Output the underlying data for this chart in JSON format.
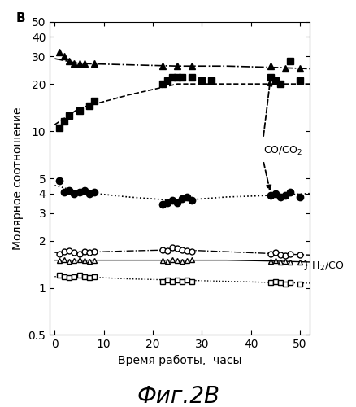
{
  "title_label": "B",
  "xlabel": "Время работы,  часы",
  "ylabel": "Молярное соотношение",
  "fig_label": "Фиг.2B",
  "ylim_log": [
    0.5,
    50
  ],
  "xlim": [
    -1,
    52
  ],
  "yticks": [
    0.5,
    1,
    2,
    3,
    4,
    5,
    10,
    20,
    30,
    40,
    50
  ],
  "xticks": [
    0,
    10,
    20,
    30,
    40,
    50
  ],
  "series_triangle_filled": {
    "x": [
      1,
      2,
      3,
      4,
      5,
      6,
      8,
      22,
      25,
      28,
      44,
      47,
      50
    ],
    "y": [
      32,
      30,
      28,
      27,
      27,
      27,
      27,
      26,
      26,
      26,
      26,
      25,
      25
    ],
    "fit_x": [
      0,
      5,
      15,
      25,
      35,
      45,
      52
    ],
    "fit_y": [
      29,
      27,
      26.5,
      26,
      26,
      25.5,
      25
    ],
    "marker": "^",
    "linestyle": "-.",
    "linewidth": 1.2,
    "markersize": 6
  },
  "series_square_filled": {
    "x": [
      1,
      2,
      3,
      5,
      7,
      8,
      22,
      23,
      24,
      25,
      26,
      28,
      30,
      32,
      44,
      45,
      46,
      48,
      50
    ],
    "y": [
      10.5,
      11.5,
      12.5,
      13.5,
      14.5,
      15.5,
      20,
      21,
      22,
      22,
      22,
      22,
      21,
      21,
      22,
      21,
      20,
      28,
      21
    ],
    "fit_x": [
      0,
      5,
      15,
      25,
      35,
      45,
      52
    ],
    "fit_y": [
      11,
      14,
      17,
      20,
      20,
      20,
      20
    ],
    "marker": "s",
    "linestyle": "--",
    "linewidth": 1.2,
    "markersize": 6
  },
  "series_circle_filled": {
    "x": [
      1,
      2,
      3,
      4,
      5,
      6,
      7,
      8,
      22,
      23,
      24,
      25,
      26,
      27,
      28,
      44,
      45,
      46,
      47,
      48,
      50
    ],
    "y": [
      4.8,
      4.1,
      4.2,
      4.0,
      4.1,
      4.2,
      4.0,
      4.1,
      3.4,
      3.5,
      3.6,
      3.5,
      3.7,
      3.8,
      3.6,
      3.9,
      4.0,
      3.8,
      3.9,
      4.1,
      3.8
    ],
    "fit_x": [
      0,
      5,
      15,
      25,
      35,
      45,
      52
    ],
    "fit_y": [
      4.5,
      4.1,
      3.8,
      3.6,
      3.8,
      3.9,
      4.0
    ],
    "marker": "o",
    "linestyle": "dotted",
    "linewidth": 1.2,
    "markersize": 6
  },
  "series_circle_open": {
    "x": [
      1,
      2,
      3,
      4,
      5,
      6,
      7,
      8,
      22,
      23,
      24,
      25,
      26,
      27,
      28,
      44,
      45,
      46,
      47,
      48,
      50
    ],
    "y": [
      1.65,
      1.7,
      1.72,
      1.68,
      1.65,
      1.7,
      1.68,
      1.7,
      1.75,
      1.72,
      1.8,
      1.78,
      1.75,
      1.72,
      1.7,
      1.65,
      1.68,
      1.62,
      1.6,
      1.65,
      1.62
    ],
    "fit_x": [
      0,
      5,
      15,
      25,
      35,
      45,
      52
    ],
    "fit_y": [
      1.68,
      1.68,
      1.72,
      1.75,
      1.7,
      1.65,
      1.62
    ],
    "marker": "o",
    "linestyle": "-.",
    "linewidth": 1.0,
    "markersize": 5
  },
  "series_triangle_open": {
    "x": [
      1,
      2,
      3,
      4,
      5,
      6,
      7,
      8,
      22,
      23,
      24,
      25,
      26,
      27,
      28,
      44,
      45,
      46,
      47,
      48,
      50
    ],
    "y": [
      1.5,
      1.52,
      1.48,
      1.5,
      1.52,
      1.5,
      1.48,
      1.5,
      1.5,
      1.48,
      1.52,
      1.5,
      1.48,
      1.5,
      1.52,
      1.48,
      1.5,
      1.46,
      1.48,
      1.46,
      1.45
    ],
    "fit_x": [
      0,
      5,
      15,
      25,
      35,
      45,
      52
    ],
    "fit_y": [
      1.5,
      1.5,
      1.5,
      1.5,
      1.5,
      1.48,
      1.46
    ],
    "marker": "^",
    "linestyle": "dotted",
    "linewidth": 1.0,
    "markersize": 5
  },
  "series_square_open": {
    "x": [
      1,
      2,
      3,
      4,
      5,
      6,
      7,
      8,
      22,
      23,
      24,
      25,
      26,
      27,
      28,
      44,
      45,
      46,
      47,
      48,
      50
    ],
    "y": [
      1.2,
      1.18,
      1.16,
      1.18,
      1.2,
      1.18,
      1.16,
      1.18,
      1.1,
      1.12,
      1.1,
      1.12,
      1.1,
      1.12,
      1.1,
      1.08,
      1.1,
      1.08,
      1.06,
      1.08,
      1.06
    ],
    "fit_x": [
      0,
      5,
      15,
      25,
      35,
      45,
      52
    ],
    "fit_y": [
      1.18,
      1.18,
      1.14,
      1.12,
      1.1,
      1.08,
      1.07
    ],
    "marker": "s",
    "linestyle": "dotted",
    "linewidth": 1.0,
    "markersize": 5
  },
  "background_color": "white"
}
